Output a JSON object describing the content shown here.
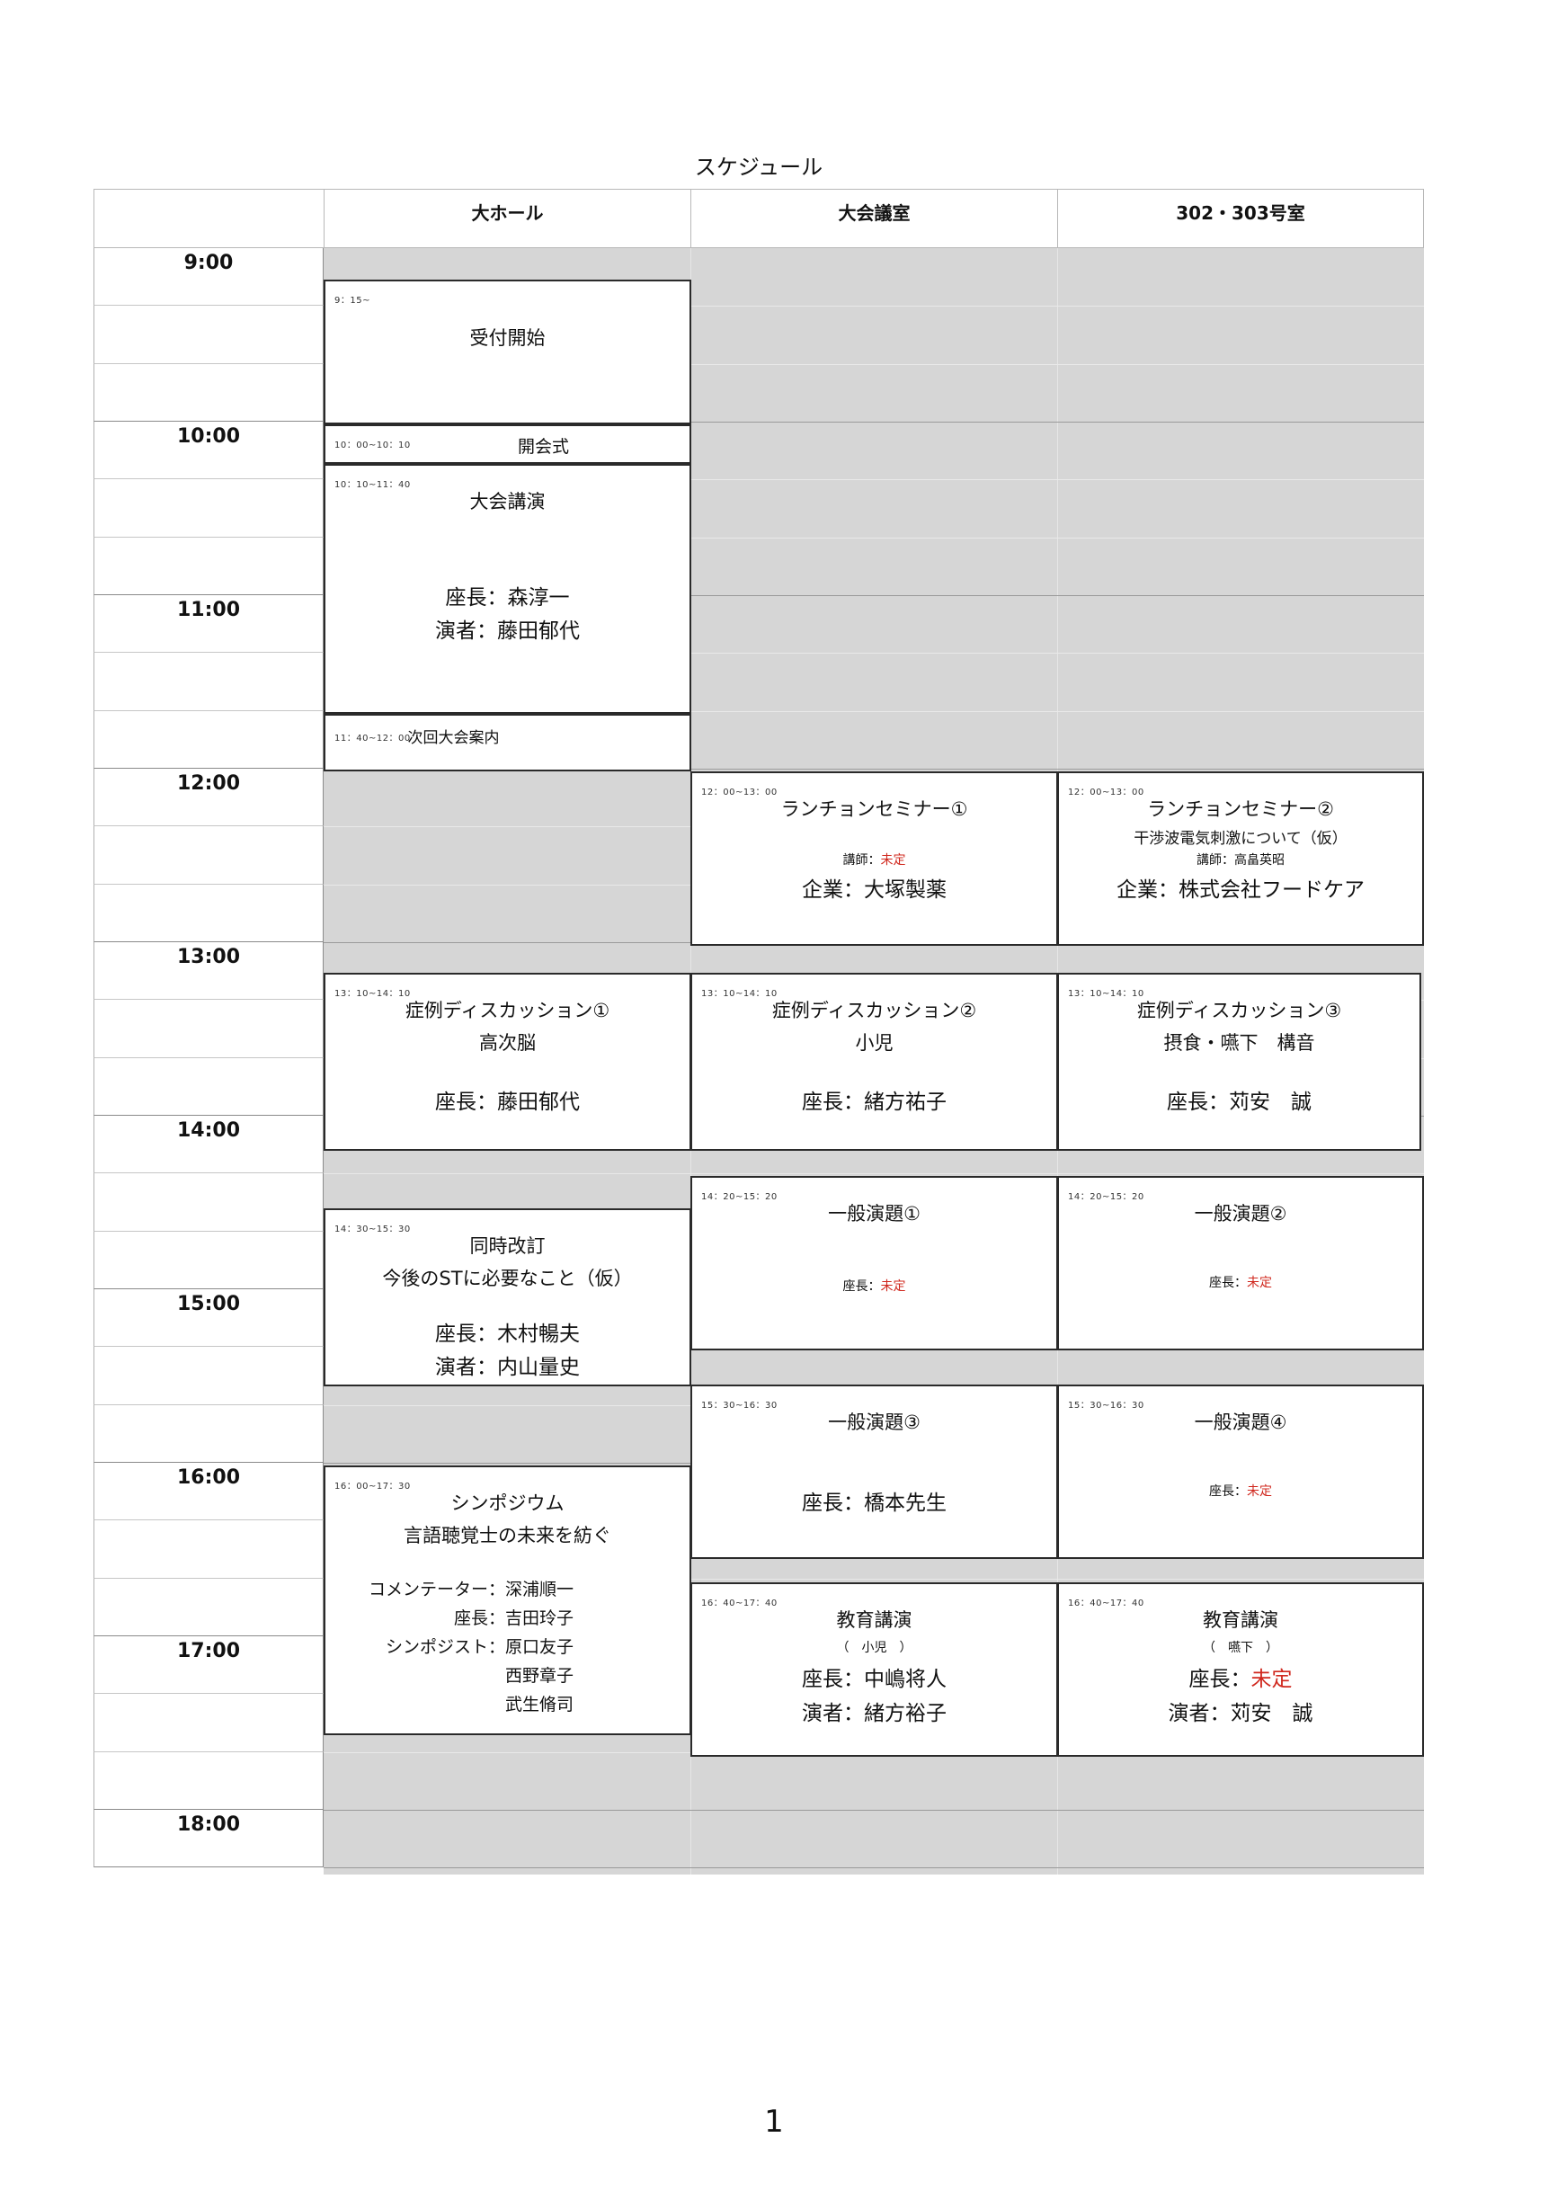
{
  "page_title": "スケジュール",
  "page_number": "1",
  "rooms": [
    "大ホール",
    "大会議室",
    "302・303号室"
  ],
  "hours": [
    "9:00",
    "10:00",
    "11:00",
    "12:00",
    "13:00",
    "14:00",
    "15:00",
    "16:00",
    "17:00",
    "18:00"
  ],
  "hall": {
    "reception": {
      "time": "9：15~",
      "title": "受付開始"
    },
    "opening": {
      "time": "10：00~10：10",
      "title": "開会式"
    },
    "keynote": {
      "time": "10：10~11：40",
      "title": "大会講演",
      "chair": "座長：森淳一",
      "speaker": "演者：藤田郁代"
    },
    "next": {
      "time": "11：40~12：00",
      "title": "次回大会案内"
    },
    "case1": {
      "time": "13：10~14：10",
      "title": "症例ディスカッション①",
      "topic": "高次脳",
      "chair": "座長：藤田郁代"
    },
    "revision": {
      "time": "14：30~15：30",
      "title": "同時改訂",
      "topic": "今後のSTに必要なこと（仮）",
      "chair": "座長：木村暢夫",
      "speaker": "演者：内山量史"
    },
    "symposium": {
      "time": "16：00~17：30",
      "title": "シンポジウム",
      "topic": "言語聴覚士の未来を紡ぐ",
      "commentator_label": "コメンテーター：",
      "commentator": "深浦順一",
      "chair_label": "座長：",
      "chair": "吉田玲子",
      "panel_label": "シンポジスト：",
      "panel": [
        "原口友子",
        "西野章子",
        "武生脩司"
      ]
    }
  },
  "conf": {
    "lunch1": {
      "time": "12：00~13：00",
      "title": "ランチョンセミナー①",
      "lecturer_label": "講師：",
      "lecturer": "未定",
      "company": "企業：大塚製薬"
    },
    "case2": {
      "time": "13：10~14：10",
      "title": "症例ディスカッション②",
      "topic": "小児",
      "chair": "座長：緒方祐子"
    },
    "general1": {
      "time": "14：20~15：20",
      "title": "一般演題①",
      "chair_label": "座長：",
      "chair": "未定"
    },
    "general3": {
      "time": "15：30~16：30",
      "title": "一般演題③",
      "chair": "座長：橋本先生"
    },
    "edu": {
      "time": "16：40~17：40",
      "title": "教育講演",
      "topic": "（　小児　）",
      "chair": "座長：中嶋将人",
      "speaker": "演者：緒方裕子"
    }
  },
  "room302": {
    "lunch2": {
      "time": "12：00~13：00",
      "title": "ランチョンセミナー②",
      "topic": "干渉波電気刺激について（仮）",
      "lecturer": "講師：高畠英昭",
      "company": "企業：株式会社フードケア"
    },
    "case3": {
      "time": "13：10~14：10",
      "title": "症例ディスカッション③",
      "topic": "摂食・嚥下　構音",
      "chair": "座長：苅安　誠"
    },
    "general2": {
      "time": "14：20~15：20",
      "title": "一般演題②",
      "chair_label": "座長：",
      "chair": "未定"
    },
    "general4": {
      "time": "15：30~16：30",
      "title": "一般演題④",
      "chair_label": "座長：",
      "chair": "未定"
    },
    "edu": {
      "time": "16：40~17：40",
      "title": "教育講演",
      "topic": "（　嚥下　）",
      "chair_label": "座長：",
      "chair": "未定",
      "speaker": "演者：苅安　誠"
    }
  }
}
